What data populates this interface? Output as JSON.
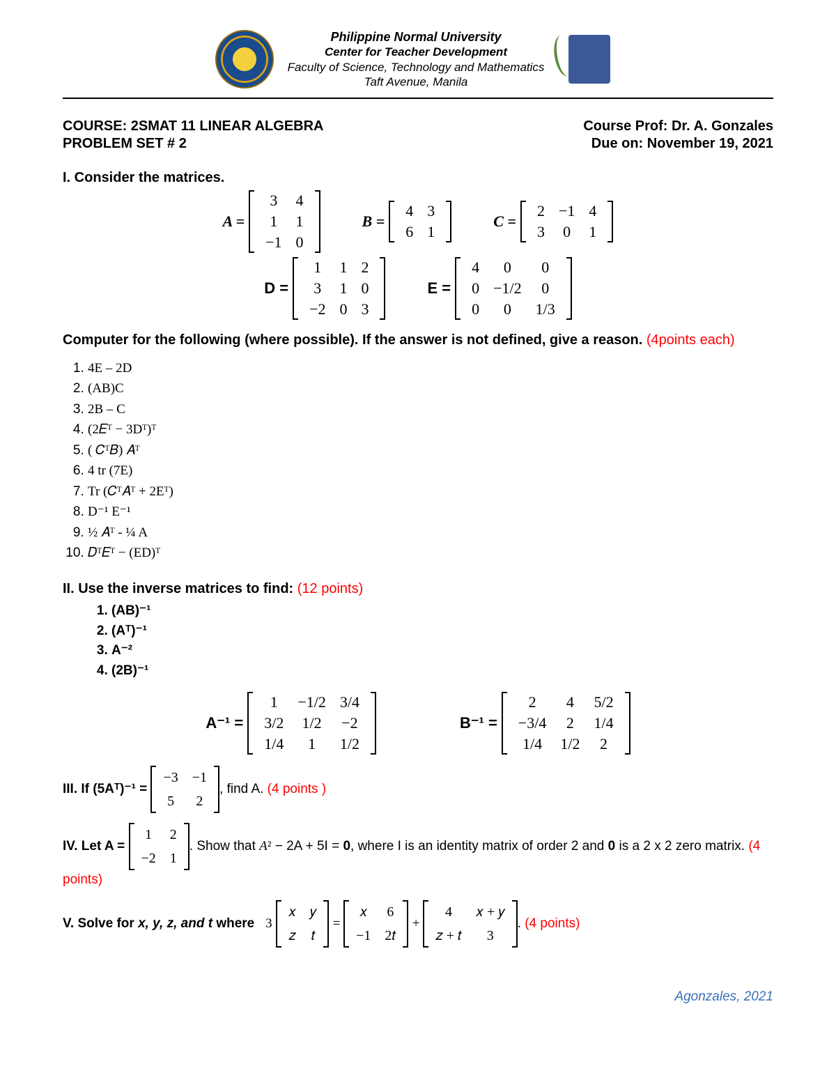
{
  "header": {
    "line1": "Philippine Normal University",
    "line2": "Center for Teacher Development",
    "line3": "Faculty of Science, Technology and Mathematics",
    "line4": "Taft Avenue, Manila"
  },
  "course": {
    "left1": "COURSE: 2SMAT 11 LINEAR ALGEBRA",
    "right1": "Course Prof: Dr. A. Gonzales",
    "left2": "PROBLEM SET # 2",
    "right2": "Due on: November 19, 2021"
  },
  "section1_title": "I. Consider the matrices.",
  "matrices": {
    "A": [
      [
        "3",
        "4"
      ],
      [
        "1",
        "1"
      ],
      [
        "−1",
        "0"
      ]
    ],
    "B": [
      [
        "4",
        "3"
      ],
      [
        "6",
        "1"
      ]
    ],
    "C": [
      [
        "2",
        "−1",
        "4"
      ],
      [
        "3",
        "0",
        "1"
      ]
    ],
    "D": [
      [
        "1",
        "1",
        "2"
      ],
      [
        "3",
        "1",
        "0"
      ],
      [
        "−2",
        "0",
        "3"
      ]
    ],
    "E": [
      [
        "4",
        "0",
        "0"
      ],
      [
        "0",
        "−1/2",
        "0"
      ],
      [
        "0",
        "0",
        "1/3"
      ]
    ]
  },
  "compute_instruction": "Computer for the following (where possible). If the answer is not defined, give a reason.",
  "compute_points": " (4points each)",
  "problems": [
    "4E – 2D",
    "(AB)C",
    "2B – C",
    "(2𝐸ᵀ − 3Dᵀ)ᵀ",
    "( 𝐶ᵀ𝐵) 𝐴ᵀ",
    "4 tr (7E)",
    "Tr (𝐶ᵀ𝐴ᵀ + 2Eᵀ)",
    "D⁻¹ E⁻¹",
    "½ 𝐴ᵀ - ¼ A",
    "𝐷ᵀ𝐸ᵀ − (ED)ᵀ"
  ],
  "section2_title": "II. Use the inverse matrices to find:",
  "section2_points": " (12 points)",
  "inv_items": [
    "(AB)⁻¹",
    "(Aᵀ)⁻¹",
    "A⁻²",
    "(2B)⁻¹"
  ],
  "Ainv": [
    [
      "1",
      "−1/2",
      "3/4"
    ],
    [
      "3/2",
      "1/2",
      "−2"
    ],
    [
      "1/4",
      "1",
      "1/2"
    ]
  ],
  "Binv": [
    [
      "2",
      "4",
      "5/2"
    ],
    [
      "−3/4",
      "2",
      "1/4"
    ],
    [
      "1/4",
      "1/2",
      "2"
    ]
  ],
  "section3_pre": "III. If (5Aᵀ)⁻¹ = ",
  "section3_mat": [
    [
      "−3",
      "−1"
    ],
    [
      "5",
      "2"
    ]
  ],
  "section3_post": ", find A.",
  "section3_points": "  (4 points )",
  "section4_pre": "IV. Let A = ",
  "section4_mat": [
    [
      "1",
      "2"
    ],
    [
      "−2",
      "1"
    ]
  ],
  "section4_mid": ". Show that 𝐴² − 2A + 5I = 0, where I is an identity matrix of order 2 and 0 is a 2 x 2 zero matrix.",
  "section4_points": " (4 points)",
  "section5_pre": "V. Solve for x, y, z, and t where   3",
  "section5_m1": [
    [
      "𝑥",
      "𝑦"
    ],
    [
      "𝑧",
      "𝑡"
    ]
  ],
  "section5_eq": " = ",
  "section5_m2": [
    [
      "𝑥",
      "6"
    ],
    [
      "−1",
      "2𝑡"
    ]
  ],
  "section5_plus": " + ",
  "section5_m3": [
    [
      "4",
      "𝑥 + 𝑦"
    ],
    [
      "𝑧 + 𝑡",
      "3"
    ]
  ],
  "section5_post": ".",
  "section5_points": " (4 points)",
  "footer": "Agonzales, 2021",
  "colors": {
    "red": "#ff0000",
    "footer": "#3b6fb5",
    "text": "#000000",
    "bg": "#ffffff"
  }
}
